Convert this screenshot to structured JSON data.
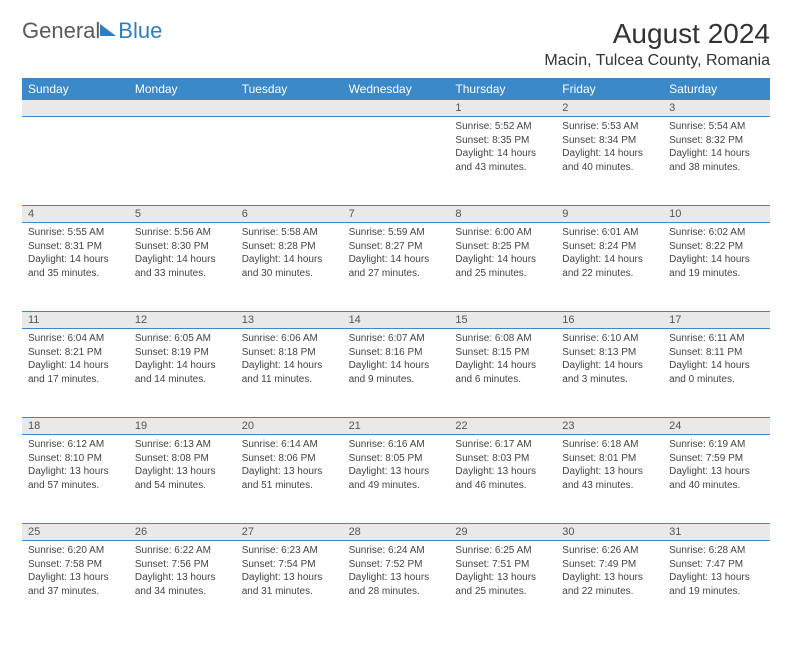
{
  "logo": {
    "general": "General",
    "blue": "Blue"
  },
  "title": "August 2024",
  "location": "Macin, Tulcea County, Romania",
  "colors": {
    "header_bg": "#3b89c9",
    "header_text": "#ffffff",
    "daynum_bg": "#e9e9e9",
    "border": "#3b89c9",
    "text": "#444444"
  },
  "days_of_week": [
    "Sunday",
    "Monday",
    "Tuesday",
    "Wednesday",
    "Thursday",
    "Friday",
    "Saturday"
  ],
  "weeks": [
    [
      null,
      null,
      null,
      null,
      {
        "n": "1",
        "sunrise": "Sunrise: 5:52 AM",
        "sunset": "Sunset: 8:35 PM",
        "daylight1": "Daylight: 14 hours",
        "daylight2": "and 43 minutes."
      },
      {
        "n": "2",
        "sunrise": "Sunrise: 5:53 AM",
        "sunset": "Sunset: 8:34 PM",
        "daylight1": "Daylight: 14 hours",
        "daylight2": "and 40 minutes."
      },
      {
        "n": "3",
        "sunrise": "Sunrise: 5:54 AM",
        "sunset": "Sunset: 8:32 PM",
        "daylight1": "Daylight: 14 hours",
        "daylight2": "and 38 minutes."
      }
    ],
    [
      {
        "n": "4",
        "sunrise": "Sunrise: 5:55 AM",
        "sunset": "Sunset: 8:31 PM",
        "daylight1": "Daylight: 14 hours",
        "daylight2": "and 35 minutes."
      },
      {
        "n": "5",
        "sunrise": "Sunrise: 5:56 AM",
        "sunset": "Sunset: 8:30 PM",
        "daylight1": "Daylight: 14 hours",
        "daylight2": "and 33 minutes."
      },
      {
        "n": "6",
        "sunrise": "Sunrise: 5:58 AM",
        "sunset": "Sunset: 8:28 PM",
        "daylight1": "Daylight: 14 hours",
        "daylight2": "and 30 minutes."
      },
      {
        "n": "7",
        "sunrise": "Sunrise: 5:59 AM",
        "sunset": "Sunset: 8:27 PM",
        "daylight1": "Daylight: 14 hours",
        "daylight2": "and 27 minutes."
      },
      {
        "n": "8",
        "sunrise": "Sunrise: 6:00 AM",
        "sunset": "Sunset: 8:25 PM",
        "daylight1": "Daylight: 14 hours",
        "daylight2": "and 25 minutes."
      },
      {
        "n": "9",
        "sunrise": "Sunrise: 6:01 AM",
        "sunset": "Sunset: 8:24 PM",
        "daylight1": "Daylight: 14 hours",
        "daylight2": "and 22 minutes."
      },
      {
        "n": "10",
        "sunrise": "Sunrise: 6:02 AM",
        "sunset": "Sunset: 8:22 PM",
        "daylight1": "Daylight: 14 hours",
        "daylight2": "and 19 minutes."
      }
    ],
    [
      {
        "n": "11",
        "sunrise": "Sunrise: 6:04 AM",
        "sunset": "Sunset: 8:21 PM",
        "daylight1": "Daylight: 14 hours",
        "daylight2": "and 17 minutes."
      },
      {
        "n": "12",
        "sunrise": "Sunrise: 6:05 AM",
        "sunset": "Sunset: 8:19 PM",
        "daylight1": "Daylight: 14 hours",
        "daylight2": "and 14 minutes."
      },
      {
        "n": "13",
        "sunrise": "Sunrise: 6:06 AM",
        "sunset": "Sunset: 8:18 PM",
        "daylight1": "Daylight: 14 hours",
        "daylight2": "and 11 minutes."
      },
      {
        "n": "14",
        "sunrise": "Sunrise: 6:07 AM",
        "sunset": "Sunset: 8:16 PM",
        "daylight1": "Daylight: 14 hours",
        "daylight2": "and 9 minutes."
      },
      {
        "n": "15",
        "sunrise": "Sunrise: 6:08 AM",
        "sunset": "Sunset: 8:15 PM",
        "daylight1": "Daylight: 14 hours",
        "daylight2": "and 6 minutes."
      },
      {
        "n": "16",
        "sunrise": "Sunrise: 6:10 AM",
        "sunset": "Sunset: 8:13 PM",
        "daylight1": "Daylight: 14 hours",
        "daylight2": "and 3 minutes."
      },
      {
        "n": "17",
        "sunrise": "Sunrise: 6:11 AM",
        "sunset": "Sunset: 8:11 PM",
        "daylight1": "Daylight: 14 hours",
        "daylight2": "and 0 minutes."
      }
    ],
    [
      {
        "n": "18",
        "sunrise": "Sunrise: 6:12 AM",
        "sunset": "Sunset: 8:10 PM",
        "daylight1": "Daylight: 13 hours",
        "daylight2": "and 57 minutes."
      },
      {
        "n": "19",
        "sunrise": "Sunrise: 6:13 AM",
        "sunset": "Sunset: 8:08 PM",
        "daylight1": "Daylight: 13 hours",
        "daylight2": "and 54 minutes."
      },
      {
        "n": "20",
        "sunrise": "Sunrise: 6:14 AM",
        "sunset": "Sunset: 8:06 PM",
        "daylight1": "Daylight: 13 hours",
        "daylight2": "and 51 minutes."
      },
      {
        "n": "21",
        "sunrise": "Sunrise: 6:16 AM",
        "sunset": "Sunset: 8:05 PM",
        "daylight1": "Daylight: 13 hours",
        "daylight2": "and 49 minutes."
      },
      {
        "n": "22",
        "sunrise": "Sunrise: 6:17 AM",
        "sunset": "Sunset: 8:03 PM",
        "daylight1": "Daylight: 13 hours",
        "daylight2": "and 46 minutes."
      },
      {
        "n": "23",
        "sunrise": "Sunrise: 6:18 AM",
        "sunset": "Sunset: 8:01 PM",
        "daylight1": "Daylight: 13 hours",
        "daylight2": "and 43 minutes."
      },
      {
        "n": "24",
        "sunrise": "Sunrise: 6:19 AM",
        "sunset": "Sunset: 7:59 PM",
        "daylight1": "Daylight: 13 hours",
        "daylight2": "and 40 minutes."
      }
    ],
    [
      {
        "n": "25",
        "sunrise": "Sunrise: 6:20 AM",
        "sunset": "Sunset: 7:58 PM",
        "daylight1": "Daylight: 13 hours",
        "daylight2": "and 37 minutes."
      },
      {
        "n": "26",
        "sunrise": "Sunrise: 6:22 AM",
        "sunset": "Sunset: 7:56 PM",
        "daylight1": "Daylight: 13 hours",
        "daylight2": "and 34 minutes."
      },
      {
        "n": "27",
        "sunrise": "Sunrise: 6:23 AM",
        "sunset": "Sunset: 7:54 PM",
        "daylight1": "Daylight: 13 hours",
        "daylight2": "and 31 minutes."
      },
      {
        "n": "28",
        "sunrise": "Sunrise: 6:24 AM",
        "sunset": "Sunset: 7:52 PM",
        "daylight1": "Daylight: 13 hours",
        "daylight2": "and 28 minutes."
      },
      {
        "n": "29",
        "sunrise": "Sunrise: 6:25 AM",
        "sunset": "Sunset: 7:51 PM",
        "daylight1": "Daylight: 13 hours",
        "daylight2": "and 25 minutes."
      },
      {
        "n": "30",
        "sunrise": "Sunrise: 6:26 AM",
        "sunset": "Sunset: 7:49 PM",
        "daylight1": "Daylight: 13 hours",
        "daylight2": "and 22 minutes."
      },
      {
        "n": "31",
        "sunrise": "Sunrise: 6:28 AM",
        "sunset": "Sunset: 7:47 PM",
        "daylight1": "Daylight: 13 hours",
        "daylight2": "and 19 minutes."
      }
    ]
  ]
}
